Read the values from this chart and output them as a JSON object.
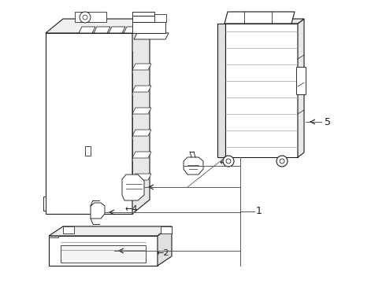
{
  "background_color": "#ffffff",
  "line_color": "#1a1a1a",
  "leader_color": "#555555",
  "lw": 0.8,
  "fig_width": 4.9,
  "fig_height": 3.6,
  "dpi": 100
}
